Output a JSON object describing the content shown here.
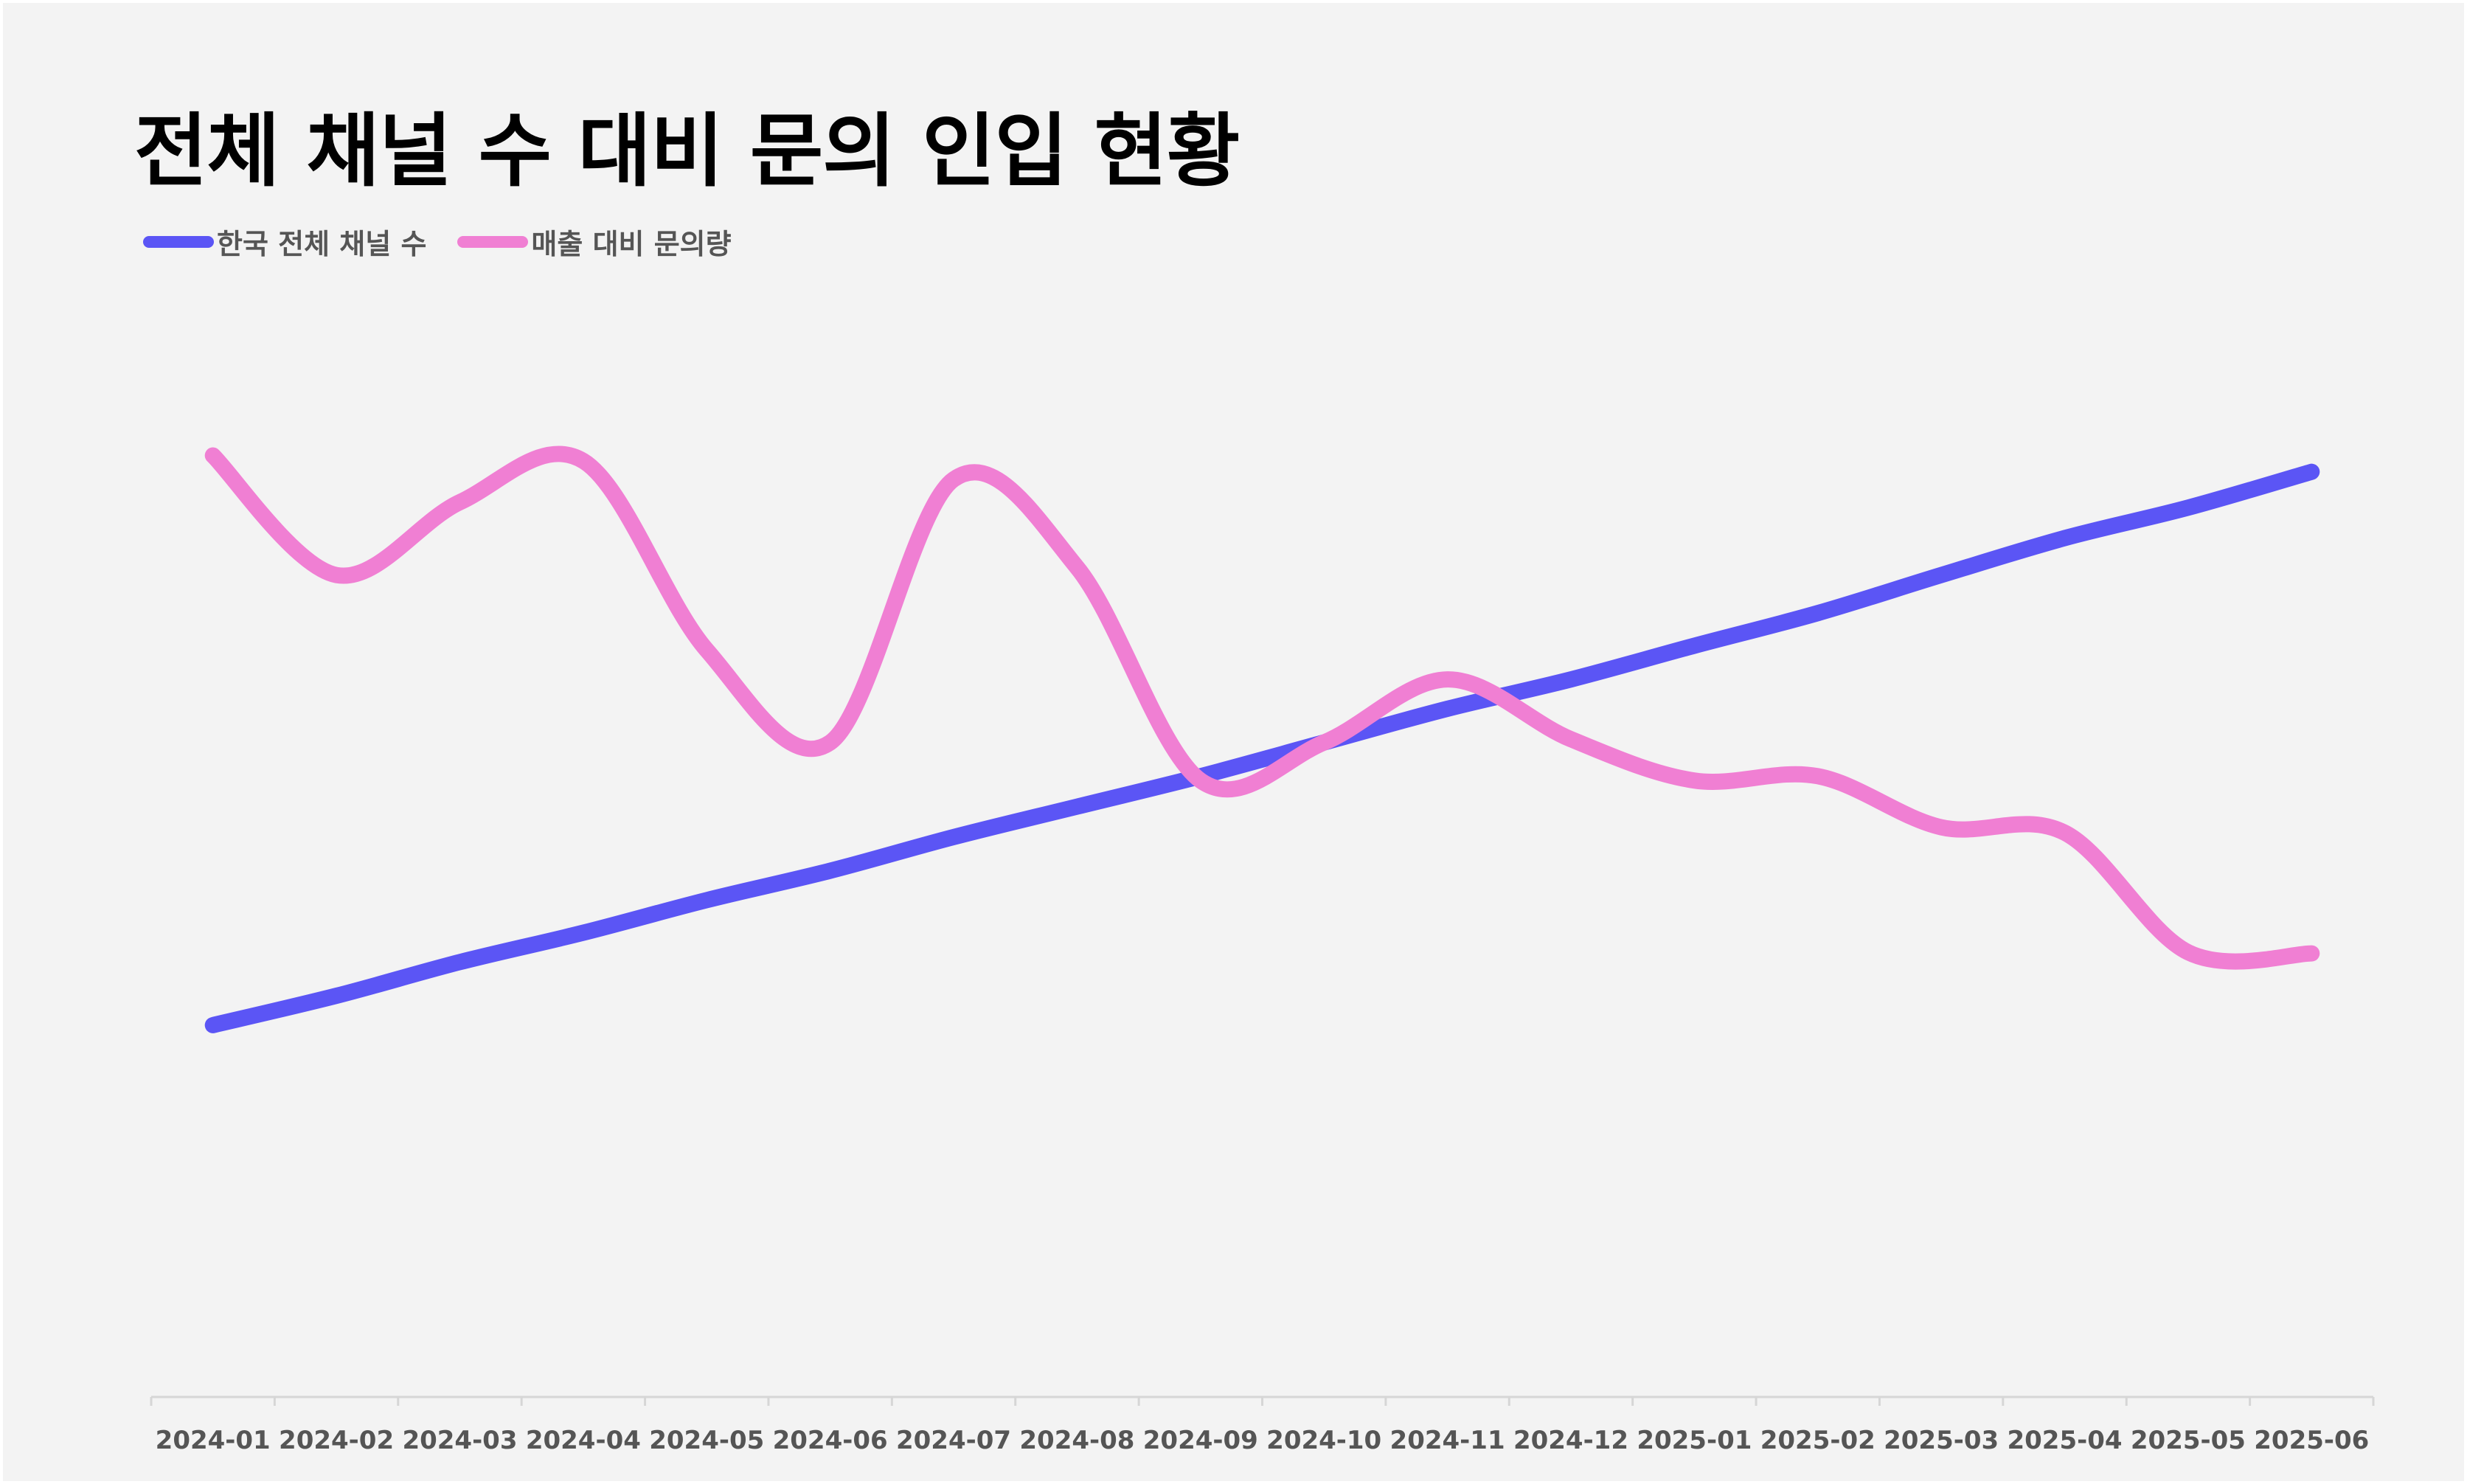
{
  "chart_data": {
    "type": "line",
    "title": "전체 채널 수 대비 문의 인입 현황",
    "xlabel": "",
    "ylabel": "",
    "ylim": [
      0,
      100
    ],
    "grid": false,
    "legend_position": "top-left",
    "categories": [
      "2024-01",
      "2024-02",
      "2024-03",
      "2024-04",
      "2024-05",
      "2024-06",
      "2024-07",
      "2024-08",
      "2024-09",
      "2024-10",
      "2024-11",
      "2024-12",
      "2025-01",
      "2025-02",
      "2025-03",
      "2025-04",
      "2025-05",
      "2025-06"
    ],
    "series": [
      {
        "name": "한국 전체 채널 수",
        "color": "#5b55f5",
        "values": [
          34.2,
          36.9,
          40.0,
          42.7,
          45.7,
          48.4,
          51.5,
          54.3,
          57.1,
          60.2,
          63.3,
          66.0,
          69.1,
          72.1,
          75.6,
          79.0,
          81.8,
          85.1
        ]
      },
      {
        "name": "매출 대비 문의량",
        "color": "#f07fd3",
        "values": [
          86.6,
          75.6,
          82.3,
          86.1,
          68.7,
          60.2,
          84.4,
          76.3,
          56.7,
          60.2,
          66.0,
          60.5,
          56.7,
          57.1,
          52.4,
          51.9,
          40.9,
          40.8
        ]
      }
    ]
  }
}
